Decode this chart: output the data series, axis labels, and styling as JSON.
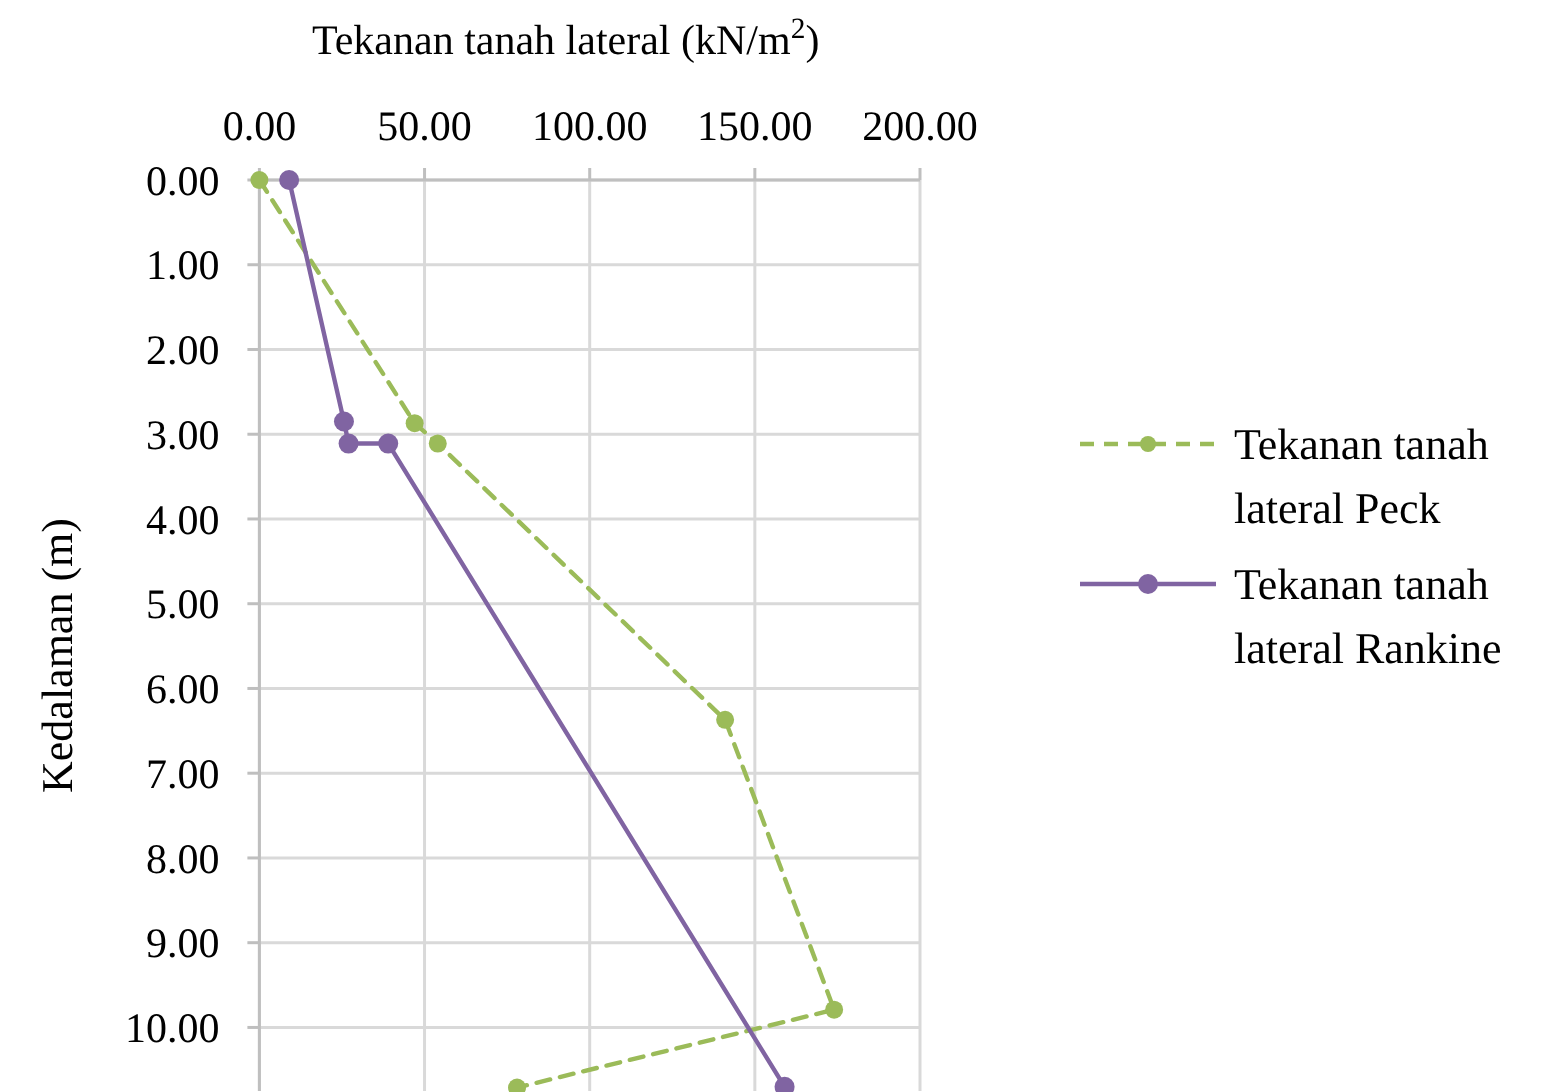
{
  "chart_data": {
    "type": "line",
    "xlabel": "Tekanan tanah lateral (kN/m$^{2}$)",
    "ylabel": "Kedalaman (m)",
    "xlim": [
      0,
      200
    ],
    "ylim": [
      10.75,
      0
    ],
    "xticks": [
      {
        "value": 0,
        "label": "0.00"
      },
      {
        "value": 50,
        "label": "50.00"
      },
      {
        "value": 100,
        "label": "100.00"
      },
      {
        "value": 150,
        "label": "150.00"
      },
      {
        "value": 200,
        "label": "200.00"
      }
    ],
    "yticks": [
      {
        "value": 0,
        "label": "0.00"
      },
      {
        "value": 1,
        "label": "1.00"
      },
      {
        "value": 2,
        "label": "2.00"
      },
      {
        "value": 3,
        "label": "3.00"
      },
      {
        "value": 4,
        "label": "4.00"
      },
      {
        "value": 5,
        "label": "5.00"
      },
      {
        "value": 6,
        "label": "6.00"
      },
      {
        "value": 7,
        "label": "7.00"
      },
      {
        "value": 8,
        "label": "8.00"
      },
      {
        "value": 9,
        "label": "9.00"
      },
      {
        "value": 10,
        "label": "10.00"
      }
    ],
    "grid": true,
    "legend": "right",
    "marker": "circle",
    "series": [
      {
        "name": "Tekanan tanah lateral Peck",
        "color": "#9bbb59",
        "line_style": "dashed",
        "x": [
          0,
          47,
          54,
          141,
          174,
          78
        ],
        "values": [
          0,
          2.87,
          3.11,
          6.37,
          9.79,
          10.71
        ]
      },
      {
        "name": "Tekanan tanah lateral Rankine",
        "color": "#8064a2",
        "line_style": "solid",
        "x": [
          9,
          25.6,
          27,
          39,
          159
        ],
        "values": [
          0,
          2.85,
          3.11,
          3.11,
          10.7
        ]
      }
    ]
  }
}
